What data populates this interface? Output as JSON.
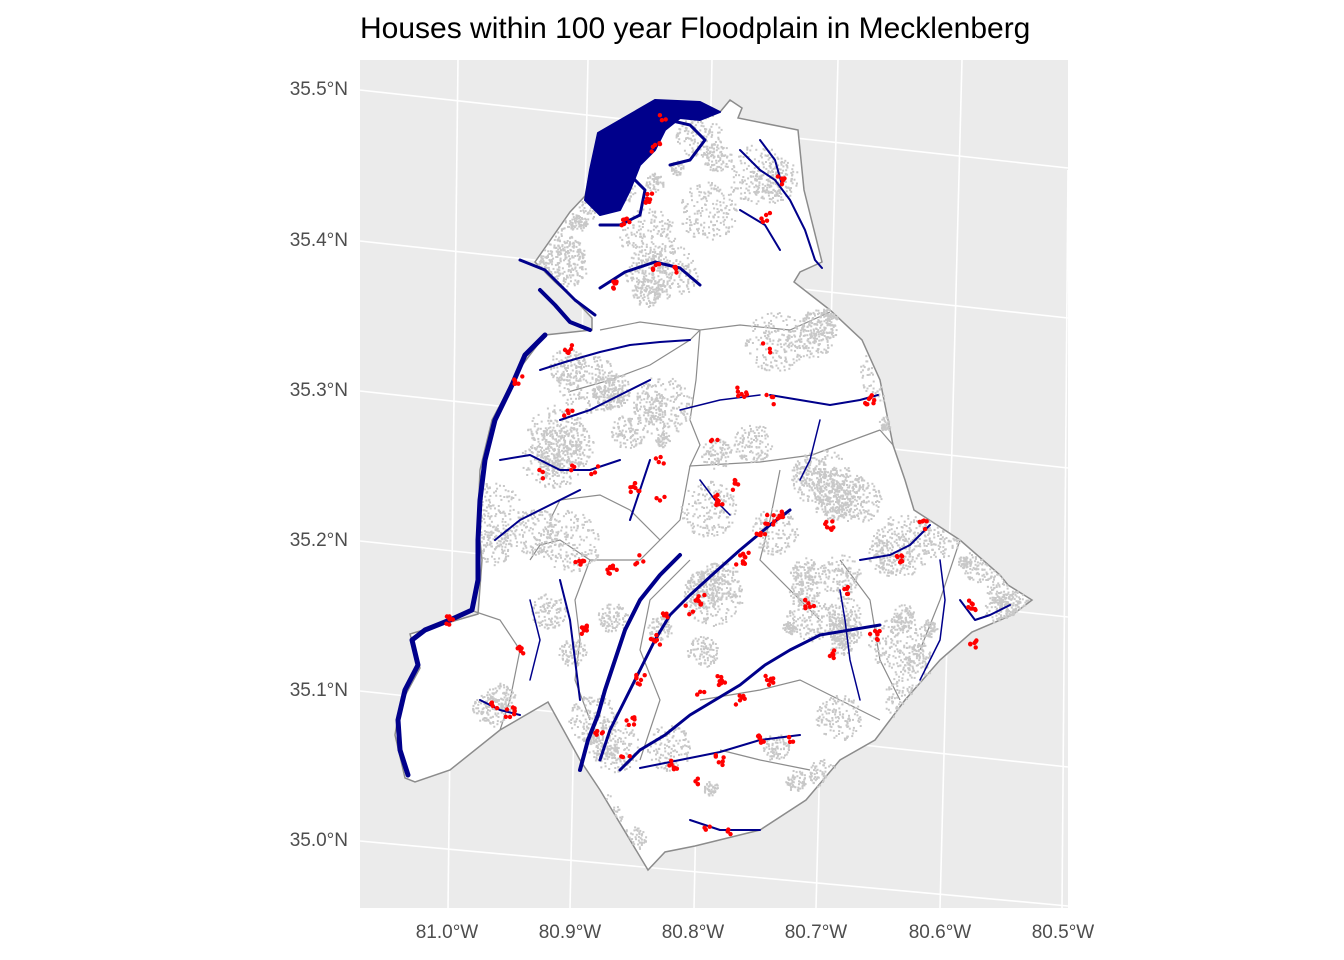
{
  "title": "Houses within 100 year Floodplain in Mecklenberg",
  "map": {
    "latitude_labels": [
      "35.5°N",
      "35.4°N",
      "35.3°N",
      "35.2°N",
      "35.1°N",
      "35.0°N"
    ],
    "longitude_labels": [
      "81.0°W",
      "80.9°W",
      "80.8°W",
      "80.7°W",
      "80.6°W",
      "80.5°W"
    ],
    "colors": {
      "panel_background": "#ebebeb",
      "gridline": "#ffffff",
      "county_fill": "#ffffff",
      "boundary_lines": "#8c8c8c",
      "houses": "#c8c8c8",
      "floodplain": "#00008b",
      "flood_houses": "#ff0000"
    },
    "layers": [
      "county-boundary",
      "sub-boundaries",
      "houses",
      "floodplain-streams",
      "houses-in-floodplain"
    ]
  }
}
